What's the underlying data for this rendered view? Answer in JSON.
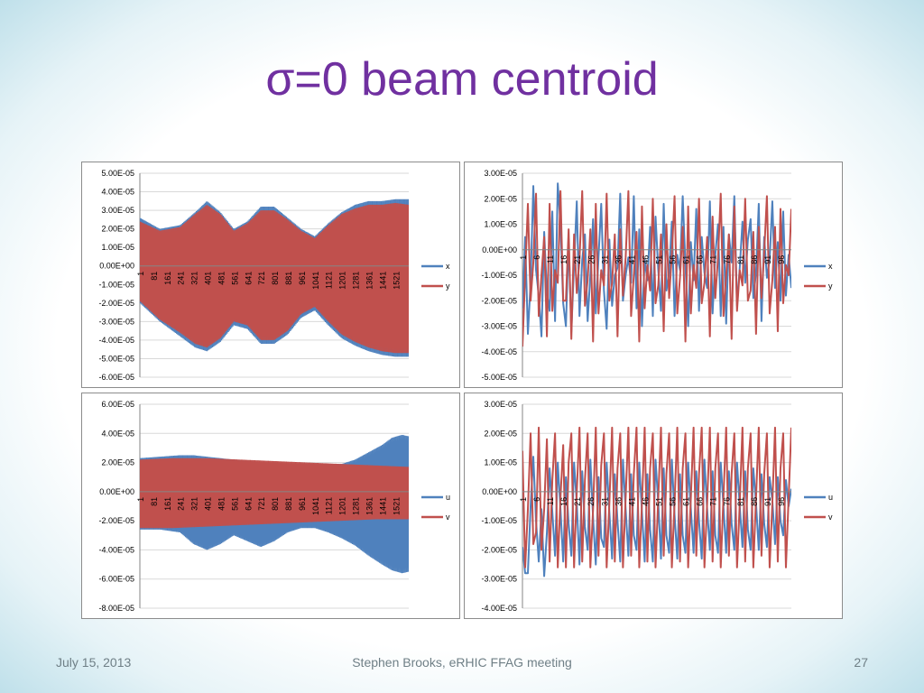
{
  "slide": {
    "title": "σ=0 beam centroid",
    "footer_date": "July 15, 2013",
    "footer_center": "Stephen Brooks, eRHIC FFAG meeting",
    "page_number": "27"
  },
  "chart_data": [
    {
      "type": "line",
      "y_ticks": [
        "5.00E-05",
        "4.00E-05",
        "3.00E-05",
        "2.00E-05",
        "1.00E-05",
        "0.00E+00",
        "-1.00E-05",
        "-2.00E-05",
        "-3.00E-05",
        "-4.00E-05",
        "-5.00E-05",
        "-6.00E-05"
      ],
      "ylim": [
        -6e-05,
        5e-05
      ],
      "x_tick_labels": [
        "1",
        "81",
        "161",
        "241",
        "321",
        "401",
        "481",
        "561",
        "641",
        "721",
        "801",
        "881",
        "961",
        "1041",
        "1121",
        "1201",
        "1281",
        "1361",
        "1441",
        "1521"
      ],
      "xlim": [
        1,
        1600
      ],
      "series": [
        {
          "name": "x",
          "color": "#4f81bd",
          "kind": "band",
          "x": [
            1,
            120,
            240,
            330,
            400,
            480,
            560,
            640,
            720,
            800,
            880,
            960,
            1041,
            1121,
            1201,
            1281,
            1361,
            1441,
            1521,
            1600
          ],
          "upper": [
            2.6e-05,
            2e-05,
            2.2e-05,
            2.9e-05,
            3.5e-05,
            2.9e-05,
            2e-05,
            2.4e-05,
            3.2e-05,
            3.2e-05,
            2.6e-05,
            2e-05,
            1.6e-05,
            2.3e-05,
            2.9e-05,
            3.3e-05,
            3.5e-05,
            3.5e-05,
            3.6e-05,
            3.6e-05
          ],
          "lower": [
            -2e-05,
            -3e-05,
            -3.8e-05,
            -4.4e-05,
            -4.6e-05,
            -4.1e-05,
            -3.2e-05,
            -3.4e-05,
            -4.2e-05,
            -4.2e-05,
            -3.7e-05,
            -2.8e-05,
            -2.4e-05,
            -3.2e-05,
            -3.9e-05,
            -4.3e-05,
            -4.6e-05,
            -4.8e-05,
            -4.9e-05,
            -4.9e-05
          ]
        },
        {
          "name": "y",
          "color": "#c0504d",
          "kind": "band",
          "x": [
            1,
            120,
            240,
            330,
            400,
            480,
            560,
            640,
            720,
            800,
            880,
            960,
            1041,
            1121,
            1201,
            1281,
            1361,
            1441,
            1521,
            1600
          ],
          "upper": [
            2.4e-05,
            1.9e-05,
            2.1e-05,
            2.8e-05,
            3.3e-05,
            2.8e-05,
            1.9e-05,
            2.3e-05,
            3e-05,
            3e-05,
            2.5e-05,
            1.9e-05,
            1.5e-05,
            2.2e-05,
            2.8e-05,
            3.1e-05,
            3.3e-05,
            3.3e-05,
            3.4e-05,
            3.3e-05
          ],
          "lower": [
            -1.9e-05,
            -2.9e-05,
            -3.6e-05,
            -4.2e-05,
            -4.4e-05,
            -3.9e-05,
            -3e-05,
            -3.2e-05,
            -4e-05,
            -4e-05,
            -3.5e-05,
            -2.6e-05,
            -2.2e-05,
            -3e-05,
            -3.7e-05,
            -4.1e-05,
            -4.4e-05,
            -4.6e-05,
            -4.7e-05,
            -4.7e-05
          ]
        }
      ],
      "legend": [
        "x",
        "y"
      ]
    },
    {
      "type": "line",
      "y_ticks": [
        "3.00E-05",
        "2.00E-05",
        "1.00E-05",
        "0.00E+00",
        "-1.00E-05",
        "-2.00E-05",
        "-3.00E-05",
        "-4.00E-05",
        "-5.00E-05"
      ],
      "ylim": [
        -5e-05,
        3e-05
      ],
      "x_tick_labels": [
        "1",
        "6",
        "11",
        "16",
        "21",
        "26",
        "31",
        "36",
        "41",
        "46",
        "51",
        "56",
        "61",
        "66",
        "71",
        "76",
        "81",
        "86",
        "91",
        "96"
      ],
      "xlim": [
        1,
        100
      ],
      "series": [
        {
          "name": "x",
          "color": "#4f81bd",
          "kind": "line",
          "values": [
            -2.3e-05,
            5e-06,
            -3.3e-05,
            -1.3e-05,
            2.5e-05,
            -8e-06,
            -1.8e-05,
            -3.4e-05,
            7e-06,
            -1.7e-05,
            -2.4e-05,
            1.5e-05,
            -2.8e-05,
            2.6e-05,
            1e-05,
            -2.1e-05,
            -3e-05,
            4e-06,
            -3.2e-05,
            -6e-06,
            1.9e-05,
            -2.6e-05,
            -4e-06,
            6e-06,
            -2.8e-05,
            -1e-05,
            1.2e-05,
            -2.5e-05,
            -3e-06,
            1.8e-05,
            -1.6e-05,
            -3.1e-05,
            4e-06,
            -2.2e-05,
            -1e-05,
            -7e-06,
            2.2e-05,
            -2e-05,
            -1e-05,
            -3e-06,
            -1.3e-05,
            2.1e-05,
            -2.3e-05,
            8e-06,
            -3e-05,
            -4e-06,
            -1.2e-05,
            9e-06,
            -2.6e-05,
            1.3e-05,
            -8e-06,
            -2.4e-05,
            1.8e-05,
            -1.6e-05,
            -9e-06,
            1.1e-05,
            -2.6e-05,
            -2e-06,
            -8e-06,
            2.1e-05,
            -6e-06,
            -3e-05,
            3e-06,
            -1.2e-05,
            1.6e-05,
            -2.4e-05,
            5e-06,
            -9e-06,
            -1.5e-05,
            1.9e-05,
            -2.5e-05,
            -2e-06,
            1e-05,
            -2.6e-05,
            9e-06,
            -2.9e-05,
            6e-06,
            -5e-06,
            2.1e-05,
            -2.2e-05,
            -7e-06,
            1.1e-05,
            -1.3e-05,
            4e-06,
            1.2e-05,
            -1.9e-05,
            -9e-06,
            1.8e-05,
            -2.8e-05,
            5e-06,
            -1.1e-05,
            -4e-06,
            1.9e-05,
            -1.5e-05,
            3e-06,
            -2e-05,
            1.5e-05,
            -1.8e-05,
            -2e-06,
            -1.5e-05
          ]
        },
        {
          "name": "y",
          "color": "#c0504d",
          "kind": "line",
          "values": [
            -3.8e-05,
            -1e-05,
            1.8e-05,
            -2e-05,
            -5e-06,
            2.2e-05,
            -2.6e-05,
            -1e-05,
            5e-06,
            -3.4e-05,
            1.8e-05,
            -2.4e-05,
            -8e-06,
            -1.3e-05,
            2.3e-05,
            -2e-05,
            -2e-05,
            8e-06,
            -3.5e-05,
            6e-06,
            -1.7e-05,
            -4e-06,
            2.3e-05,
            -2.2e-05,
            -1.2e-05,
            8e-06,
            -3.6e-05,
            1.8e-05,
            -2.5e-05,
            -8e-06,
            -1.4e-05,
            2.2e-05,
            -2e-05,
            -1.3e-05,
            6e-06,
            -3.4e-05,
            8e-06,
            -1.8e-05,
            -3e-06,
            2.3e-05,
            -2.6e-05,
            -1e-05,
            7e-06,
            -3.6e-05,
            1.7e-05,
            -2.3e-05,
            -6e-06,
            -1.6e-05,
            2e-05,
            -2.1e-05,
            -1.4e-05,
            6e-06,
            -3.2e-05,
            1e-05,
            -1.9e-05,
            -2e-06,
            2.1e-05,
            -2.5e-05,
            -1.1e-05,
            9e-06,
            -3.6e-05,
            1.7e-05,
            -2.5e-05,
            -6e-06,
            -1.5e-05,
            2e-05,
            -2.1e-05,
            -1.3e-05,
            5e-06,
            -3.4e-05,
            1.3e-05,
            -1.9e-05,
            -3e-06,
            2.2e-05,
            -2.6e-05,
            -1e-05,
            6e-06,
            -3.5e-05,
            1.7e-05,
            -2.4e-05,
            -8e-06,
            -1.4e-05,
            2e-05,
            -2e-05,
            -1.6e-05,
            7e-06,
            -3.3e-05,
            9e-06,
            -1.9e-05,
            -1e-06,
            2.1e-05,
            -2.5e-05,
            -1.2e-05,
            9e-06,
            -3.2e-05,
            1.6e-05,
            -2.1e-05,
            -6e-06,
            -1e-05,
            1.6e-05
          ]
        }
      ],
      "legend": [
        "x",
        "y"
      ]
    },
    {
      "type": "line",
      "y_ticks": [
        "6.00E-05",
        "4.00E-05",
        "2.00E-05",
        "0.00E+00",
        "-2.00E-05",
        "-4.00E-05",
        "-6.00E-05",
        "-8.00E-05"
      ],
      "ylim": [
        -8e-05,
        6e-05
      ],
      "x_tick_labels": [
        "1",
        "81",
        "161",
        "241",
        "321",
        "401",
        "481",
        "561",
        "641",
        "721",
        "801",
        "881",
        "961",
        "1041",
        "1121",
        "1201",
        "1281",
        "1361",
        "1441",
        "1521"
      ],
      "xlim": [
        1,
        1600
      ],
      "series": [
        {
          "name": "u",
          "color": "#4f81bd",
          "kind": "band",
          "x": [
            1,
            120,
            240,
            320,
            400,
            480,
            560,
            640,
            720,
            800,
            880,
            960,
            1041,
            1121,
            1201,
            1281,
            1361,
            1441,
            1500,
            1560,
            1600
          ],
          "upper": [
            2.3e-05,
            2.4e-05,
            2.5e-05,
            2.5e-05,
            2.4e-05,
            2.3e-05,
            2.2e-05,
            2.1e-05,
            2e-05,
            2e-05,
            1.9e-05,
            1.9e-05,
            1.9e-05,
            1.9e-05,
            1.9e-05,
            2.2e-05,
            2.7e-05,
            3.2e-05,
            3.7e-05,
            3.9e-05,
            3.8e-05
          ],
          "lower": [
            -2.6e-05,
            -2.6e-05,
            -2.8e-05,
            -3.6e-05,
            -4e-05,
            -3.6e-05,
            -3e-05,
            -3.4e-05,
            -3.8e-05,
            -3.4e-05,
            -2.8e-05,
            -2.5e-05,
            -2.5e-05,
            -2.8e-05,
            -3.2e-05,
            -3.7e-05,
            -4.4e-05,
            -5e-05,
            -5.4e-05,
            -5.6e-05,
            -5.5e-05
          ]
        },
        {
          "name": "v",
          "color": "#c0504d",
          "kind": "band",
          "x": [
            1,
            200,
            400,
            600,
            800,
            1000,
            1200,
            1400,
            1600
          ],
          "upper": [
            2.2e-05,
            2.3e-05,
            2.3e-05,
            2.2e-05,
            2.1e-05,
            2e-05,
            1.9e-05,
            1.8e-05,
            1.7e-05
          ],
          "lower": [
            -2.5e-05,
            -2.5e-05,
            -2.4e-05,
            -2.3e-05,
            -2.2e-05,
            -2.1e-05,
            -2e-05,
            -1.9e-05,
            -1.9e-05
          ]
        }
      ],
      "legend": [
        "u",
        "v"
      ]
    },
    {
      "type": "line",
      "y_ticks": [
        "3.00E-05",
        "2.00E-05",
        "1.00E-05",
        "0.00E+00",
        "-1.00E-05",
        "-2.00E-05",
        "-3.00E-05",
        "-4.00E-05"
      ],
      "ylim": [
        -4e-05,
        3e-05
      ],
      "x_tick_labels": [
        "1",
        "6",
        "11",
        "16",
        "21",
        "26",
        "31",
        "36",
        "41",
        "46",
        "51",
        "56",
        "61",
        "66",
        "71",
        "76",
        "81",
        "86",
        "91",
        "96"
      ],
      "xlim": [
        1,
        100
      ],
      "series": [
        {
          "name": "u",
          "color": "#4f81bd",
          "kind": "line",
          "values": [
            -1.9e-05,
            -2.8e-05,
            -2.8e-05,
            -5e-06,
            1.2e-05,
            -1e-05,
            -2.4e-05,
            -6e-06,
            -2.9e-05,
            -1.4e-05,
            8e-06,
            -7e-06,
            -2.2e-05,
            1e-05,
            -6e-06,
            -2.4e-05,
            5e-06,
            -1.1e-05,
            -2.2e-05,
            1e-05,
            -4e-06,
            -2.5e-05,
            7e-06,
            -1.2e-05,
            -2e-05,
            1.1e-05,
            -9e-06,
            -2.5e-05,
            5e-06,
            -1.6e-05,
            -1.9e-05,
            1e-05,
            -7e-06,
            -2.3e-05,
            6e-06,
            -1e-05,
            -2.4e-05,
            1.1e-05,
            -6e-06,
            -2.2e-05,
            6e-06,
            -1.5e-05,
            -2e-05,
            1e-05,
            -7e-06,
            -2.4e-05,
            6e-06,
            -1.3e-05,
            -2.4e-05,
            1.1e-05,
            -4e-06,
            -2.3e-05,
            8e-06,
            -1.5e-05,
            -2.1e-05,
            1.1e-05,
            -8e-06,
            -2.3e-05,
            6e-06,
            -1.5e-05,
            -2.1e-05,
            1e-05,
            -6e-06,
            -2.1e-05,
            7e-06,
            -1e-05,
            -2.3e-05,
            1.1e-05,
            -6e-06,
            -2e-05,
            7e-06,
            -1.5e-05,
            -2.1e-05,
            1e-05,
            -5e-06,
            -2.1e-05,
            7e-06,
            -1.1e-05,
            -2e-05,
            1e-05,
            -5e-06,
            -1.9e-05,
            7e-06,
            -1.3e-05,
            -2e-05,
            8e-06,
            -4e-06,
            -2e-05,
            6e-06,
            -1.1e-05,
            -1.9e-05,
            5e-06,
            -3e-06,
            -1.8e-05,
            5e-06,
            -1e-05,
            -1.5e-05,
            4e-06,
            -5e-06,
            1e-06
          ]
        },
        {
          "name": "v",
          "color": "#c0504d",
          "kind": "line",
          "values": [
            1.4e-05,
            -2.6e-05,
            -6e-06,
            2e-05,
            -1.8e-05,
            -1.4e-05,
            2.2e-05,
            -2e-05,
            -6e-06,
            1.8e-05,
            -2.4e-05,
            4e-06,
            2e-05,
            -2.6e-05,
            -2e-06,
            1.6e-05,
            -2.6e-05,
            1e-05,
            2e-05,
            -2.6e-05,
            0.0,
            2.2e-05,
            -2.4e-05,
            4e-06,
            2e-05,
            -2.6e-05,
            -6e-06,
            2.2e-05,
            -2.2e-05,
            9e-06,
            2e-05,
            -2.6e-05,
            -4e-06,
            2.2e-05,
            -2.4e-05,
            8e-06,
            2e-05,
            -2.6e-05,
            -2e-06,
            2.2e-05,
            -2.2e-05,
            6e-06,
            2.2e-05,
            -2.6e-05,
            -4e-06,
            2.2e-05,
            -2.4e-05,
            8e-06,
            2e-05,
            -2.6e-05,
            -2e-06,
            2.2e-05,
            -2.2e-05,
            6e-06,
            2e-05,
            -2.6e-05,
            -4e-06,
            2.2e-05,
            -2.4e-05,
            8e-06,
            2e-05,
            -2.6e-05,
            -2e-06,
            2.2e-05,
            -2.2e-05,
            6e-06,
            2.2e-05,
            -2.6e-05,
            -4e-06,
            2.2e-05,
            -2.4e-05,
            8e-06,
            2e-05,
            -2.6e-05,
            -2e-06,
            2.2e-05,
            -2.2e-05,
            6e-06,
            2e-05,
            -2.6e-05,
            -4e-06,
            2.2e-05,
            -2.4e-05,
            8e-06,
            2e-05,
            -2.6e-05,
            -2e-06,
            2.2e-05,
            -2.2e-05,
            6e-06,
            2e-05,
            -2.6e-05,
            -4e-06,
            2.2e-05,
            -2.4e-05,
            8e-06,
            2e-05,
            -2.6e-05,
            -2e-06,
            2.2e-05
          ]
        }
      ],
      "legend": [
        "u",
        "v"
      ]
    }
  ]
}
